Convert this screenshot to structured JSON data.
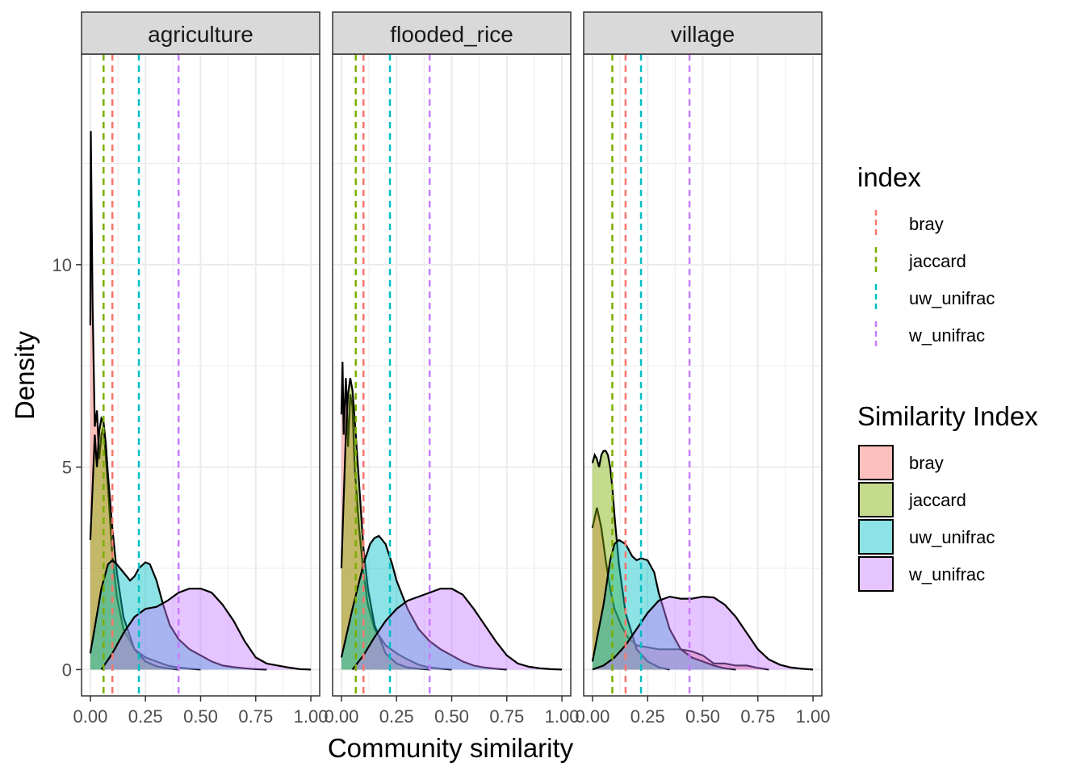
{
  "chart_data": {
    "type": "area",
    "chart_kind": "faceted density plot with dashed median lines",
    "xlabel": "Community similarity",
    "ylabel": "Density",
    "xlim": [
      -0.04,
      1.04
    ],
    "ylim": [
      -0.65,
      15.2
    ],
    "x_ticks": [
      0,
      0.25,
      0.5,
      0.75,
      1
    ],
    "x_tick_labels": [
      "0.00",
      "0.25",
      "0.50",
      "0.75",
      "1.00"
    ],
    "y_ticks": [
      0,
      5,
      10
    ],
    "y_tick_labels": [
      "0",
      "5",
      "10"
    ],
    "grid": true,
    "legend_position": "right",
    "colors": {
      "bray": "#F8766D",
      "jaccard": "#7CAE00",
      "uw_unifrac": "#00BFC4",
      "w_unifrac": "#C77CFF",
      "strip_background": "#D9D9D9",
      "grid": "#EBEBEB"
    },
    "legend_index": {
      "title": "index",
      "entries": [
        "bray",
        "jaccard",
        "uw_unifrac",
        "w_unifrac"
      ]
    },
    "legend_fill": {
      "title": "Similarity Index",
      "entries": [
        "bray",
        "jaccard",
        "uw_unifrac",
        "w_unifrac"
      ]
    },
    "facets": [
      {
        "name": "agriculture",
        "medians": {
          "bray": 0.1,
          "jaccard": 0.06,
          "uw_unifrac": 0.22,
          "w_unifrac": 0.4
        },
        "series": [
          {
            "name": "bray",
            "x": [
              0.0,
              0.002,
              0.01,
              0.02,
              0.03,
              0.04,
              0.05,
              0.06,
              0.08,
              0.1,
              0.12,
              0.15,
              0.2,
              0.25,
              0.3,
              0.35,
              0.4,
              0.45,
              0.5
            ],
            "y": [
              8.5,
              13.3,
              9.0,
              6.0,
              6.4,
              5.2,
              5.8,
              6.0,
              4.5,
              2.8,
              1.8,
              1.0,
              0.5,
              0.3,
              0.2,
              0.1,
              0.05,
              0.02,
              0.0
            ]
          },
          {
            "name": "jaccard",
            "x": [
              0.0,
              0.01,
              0.02,
              0.03,
              0.04,
              0.05,
              0.06,
              0.07,
              0.08,
              0.1,
              0.12,
              0.15,
              0.2,
              0.25,
              0.3,
              0.35,
              0.4
            ],
            "y": [
              3.2,
              4.5,
              5.8,
              5.0,
              5.9,
              6.2,
              6.1,
              5.6,
              4.8,
              3.5,
              2.4,
              1.3,
              0.5,
              0.2,
              0.08,
              0.03,
              0.0
            ]
          },
          {
            "name": "uw_unifrac",
            "x": [
              0.0,
              0.05,
              0.08,
              0.1,
              0.12,
              0.15,
              0.18,
              0.2,
              0.22,
              0.25,
              0.27,
              0.3,
              0.33,
              0.36,
              0.4,
              0.45,
              0.5,
              0.55,
              0.6,
              0.65,
              0.7,
              0.75,
              0.8
            ],
            "y": [
              0.4,
              2.0,
              2.6,
              2.7,
              2.6,
              2.4,
              2.2,
              2.3,
              2.5,
              2.65,
              2.6,
              2.2,
              1.6,
              1.1,
              0.75,
              0.5,
              0.35,
              0.2,
              0.1,
              0.06,
              0.03,
              0.01,
              0.0
            ]
          },
          {
            "name": "w_unifrac",
            "x": [
              0.05,
              0.1,
              0.15,
              0.2,
              0.25,
              0.3,
              0.35,
              0.4,
              0.45,
              0.5,
              0.55,
              0.6,
              0.65,
              0.7,
              0.75,
              0.8,
              0.85,
              0.9,
              0.95,
              1.0
            ],
            "y": [
              0.0,
              0.4,
              0.9,
              1.3,
              1.5,
              1.55,
              1.7,
              1.9,
              2.0,
              2.0,
              1.9,
              1.6,
              1.2,
              0.7,
              0.3,
              0.15,
              0.1,
              0.05,
              0.01,
              0.0
            ]
          }
        ]
      },
      {
        "name": "flooded_rice",
        "medians": {
          "bray": 0.1,
          "jaccard": 0.065,
          "uw_unifrac": 0.22,
          "w_unifrac": 0.4
        },
        "series": [
          {
            "name": "bray",
            "x": [
              0.0,
              0.005,
              0.01,
              0.02,
              0.025,
              0.03,
              0.04,
              0.05,
              0.06,
              0.08,
              0.1,
              0.12,
              0.15,
              0.2,
              0.25,
              0.3,
              0.35,
              0.4,
              0.45,
              0.5
            ],
            "y": [
              6.3,
              7.6,
              5.8,
              7.2,
              6.5,
              5.5,
              6.8,
              6.5,
              5.0,
              3.5,
              2.4,
              1.6,
              1.0,
              0.6,
              0.4,
              0.25,
              0.12,
              0.05,
              0.02,
              0.0
            ]
          },
          {
            "name": "jaccard",
            "x": [
              0.0,
              0.01,
              0.02,
              0.03,
              0.04,
              0.05,
              0.06,
              0.08,
              0.1,
              0.12,
              0.15,
              0.2,
              0.25,
              0.3,
              0.35,
              0.4
            ],
            "y": [
              2.5,
              4.2,
              5.8,
              6.8,
              7.2,
              6.9,
              6.2,
              4.6,
              3.0,
              2.0,
              1.1,
              0.4,
              0.15,
              0.05,
              0.02,
              0.0
            ]
          },
          {
            "name": "uw_unifrac",
            "x": [
              0.0,
              0.05,
              0.1,
              0.13,
              0.15,
              0.17,
              0.2,
              0.23,
              0.25,
              0.3,
              0.35,
              0.4,
              0.45,
              0.5,
              0.55,
              0.6,
              0.65,
              0.7,
              0.75
            ],
            "y": [
              0.3,
              1.5,
              2.6,
              3.1,
              3.25,
              3.3,
              3.1,
              2.6,
              2.2,
              1.5,
              1.0,
              0.7,
              0.5,
              0.35,
              0.2,
              0.1,
              0.05,
              0.02,
              0.0
            ]
          },
          {
            "name": "w_unifrac",
            "x": [
              0.05,
              0.1,
              0.15,
              0.2,
              0.25,
              0.3,
              0.35,
              0.4,
              0.45,
              0.5,
              0.55,
              0.6,
              0.65,
              0.7,
              0.75,
              0.8,
              0.85,
              0.9,
              0.95,
              1.0
            ],
            "y": [
              0.0,
              0.35,
              0.8,
              1.2,
              1.5,
              1.7,
              1.8,
              1.9,
              2.0,
              2.0,
              1.85,
              1.5,
              1.1,
              0.7,
              0.35,
              0.15,
              0.07,
              0.03,
              0.01,
              0.0
            ]
          }
        ]
      },
      {
        "name": "village",
        "medians": {
          "bray": 0.15,
          "jaccard": 0.09,
          "uw_unifrac": 0.22,
          "w_unifrac": 0.44
        },
        "series": [
          {
            "name": "bray",
            "x": [
              0.0,
              0.02,
              0.04,
              0.06,
              0.08,
              0.1,
              0.13,
              0.16,
              0.2,
              0.25,
              0.3,
              0.35,
              0.4,
              0.45,
              0.5,
              0.55,
              0.6,
              0.65,
              0.7,
              0.75,
              0.8
            ],
            "y": [
              3.5,
              4.0,
              3.5,
              2.7,
              2.0,
              1.5,
              1.1,
              0.8,
              0.6,
              0.55,
              0.5,
              0.5,
              0.5,
              0.45,
              0.35,
              0.15,
              0.15,
              0.1,
              0.1,
              0.04,
              0.0
            ]
          },
          {
            "name": "jaccard",
            "x": [
              0.0,
              0.01,
              0.02,
              0.03,
              0.04,
              0.05,
              0.06,
              0.07,
              0.08,
              0.09,
              0.1,
              0.12,
              0.15,
              0.2,
              0.25,
              0.3,
              0.35
            ],
            "y": [
              5.1,
              5.3,
              5.2,
              5.0,
              5.3,
              5.4,
              5.4,
              5.3,
              5.0,
              4.5,
              3.8,
              2.6,
              1.4,
              0.5,
              0.2,
              0.06,
              0.0
            ]
          },
          {
            "name": "uw_unifrac",
            "x": [
              0.0,
              0.05,
              0.08,
              0.1,
              0.12,
              0.15,
              0.18,
              0.2,
              0.22,
              0.25,
              0.28,
              0.3,
              0.35,
              0.4,
              0.45,
              0.5,
              0.55,
              0.6,
              0.65
            ],
            "y": [
              0.2,
              1.6,
              2.7,
              3.1,
              3.2,
              3.1,
              2.8,
              2.7,
              2.75,
              2.7,
              2.4,
              1.9,
              1.0,
              0.5,
              0.3,
              0.2,
              0.1,
              0.03,
              0.0
            ]
          },
          {
            "name": "w_unifrac",
            "x": [
              0.0,
              0.05,
              0.1,
              0.15,
              0.2,
              0.25,
              0.3,
              0.35,
              0.4,
              0.45,
              0.5,
              0.55,
              0.6,
              0.65,
              0.7,
              0.75,
              0.8,
              0.85,
              0.9,
              0.95,
              1.0
            ],
            "y": [
              0.0,
              0.1,
              0.3,
              0.6,
              1.0,
              1.4,
              1.7,
              1.8,
              1.75,
              1.75,
              1.8,
              1.78,
              1.6,
              1.3,
              0.9,
              0.5,
              0.25,
              0.12,
              0.05,
              0.02,
              0.0
            ]
          }
        ]
      }
    ]
  }
}
